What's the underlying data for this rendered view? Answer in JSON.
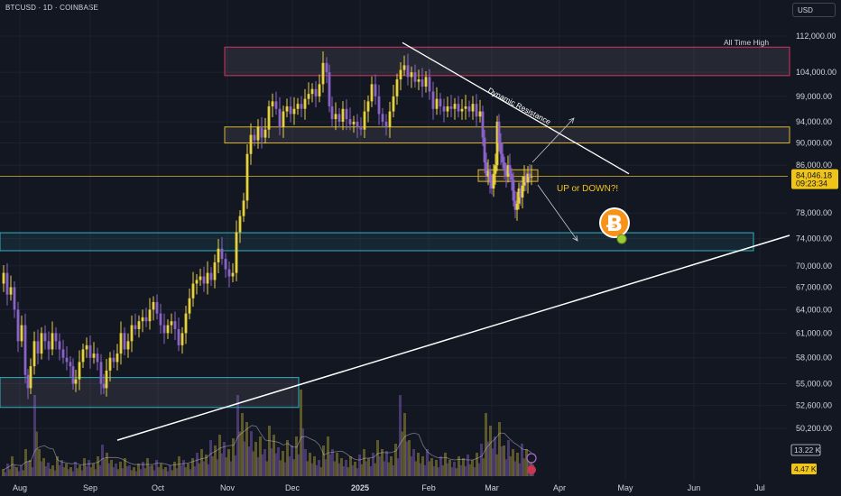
{
  "header": {
    "symbol": "BTCUSD · 1D · COINBASE",
    "currency": "USD"
  },
  "colors": {
    "background": "#131722",
    "bull": "#e8d13a",
    "bear": "#8a63c9",
    "zone_red": "#d6335e",
    "zone_yellow": "#e0b22e",
    "zone_cyan": "#2fb3c4",
    "price_tag": "#f0c419"
  },
  "chart_data": {
    "type": "candlestick",
    "x_ticks": [
      "Aug",
      "Sep",
      "Oct",
      "Nov",
      "Dec",
      "2025",
      "Feb",
      "Mar",
      "Apr",
      "May",
      "Jun",
      "Jul"
    ],
    "y_ticks": [
      112000,
      104000,
      99000,
      94000,
      90000,
      86000,
      78000,
      74000,
      70000,
      67000,
      64000,
      61000,
      58000,
      55000,
      52600,
      50200
    ],
    "y_tick_labels": [
      "112,000.00",
      "104,000.00",
      "99,000.00",
      "94,000.00",
      "90,000.00",
      "86,000.00",
      "78,000.00",
      "74,000.00",
      "70,000.00",
      "67,000.00",
      "64,000.00",
      "61,000.00",
      "58,000.00",
      "55,000.00",
      "52,600.00",
      "50,200.00"
    ],
    "last_price": "84,046.18",
    "countdown": "09:23:34",
    "volume_labels": [
      "13.22 K",
      "4.47 K"
    ],
    "y_log_scale": true,
    "price_path": [
      [
        0,
        67500
      ],
      [
        4,
        69000
      ],
      [
        8,
        66000
      ],
      [
        12,
        67000
      ],
      [
        16,
        64000
      ],
      [
        20,
        60000
      ],
      [
        24,
        62000
      ],
      [
        28,
        56000
      ],
      [
        30,
        54500
      ],
      [
        34,
        57000
      ],
      [
        38,
        60000
      ],
      [
        42,
        58500
      ],
      [
        46,
        61000
      ],
      [
        50,
        60000
      ],
      [
        54,
        59000
      ],
      [
        58,
        61000
      ],
      [
        62,
        60000
      ],
      [
        66,
        59000
      ],
      [
        70,
        58000
      ],
      [
        74,
        57500
      ],
      [
        78,
        57000
      ],
      [
        80,
        55000
      ],
      [
        84,
        55500
      ],
      [
        88,
        57500
      ],
      [
        92,
        59000
      ],
      [
        96,
        59500
      ],
      [
        100,
        58000
      ],
      [
        104,
        58500
      ],
      [
        108,
        57500
      ],
      [
        112,
        55000
      ],
      [
        114,
        54500
      ],
      [
        118,
        56500
      ],
      [
        122,
        58000
      ],
      [
        126,
        57500
      ],
      [
        130,
        58500
      ],
      [
        134,
        61000
      ],
      [
        138,
        59000
      ],
      [
        142,
        60000
      ],
      [
        146,
        62000
      ],
      [
        150,
        61500
      ],
      [
        154,
        62500
      ],
      [
        158,
        63000
      ],
      [
        162,
        62500
      ],
      [
        166,
        64000
      ],
      [
        170,
        65000
      ],
      [
        174,
        63500
      ],
      [
        178,
        62000
      ],
      [
        182,
        61000
      ],
      [
        186,
        62000
      ],
      [
        190,
        62500
      ],
      [
        194,
        61500
      ],
      [
        198,
        59500
      ],
      [
        202,
        61000
      ],
      [
        206,
        63500
      ],
      [
        210,
        65500
      ],
      [
        214,
        67500
      ],
      [
        218,
        68000
      ],
      [
        222,
        68500
      ],
      [
        226,
        67500
      ],
      [
        230,
        69000
      ],
      [
        234,
        68000
      ],
      [
        238,
        70500
      ],
      [
        242,
        72500
      ],
      [
        246,
        71000
      ],
      [
        250,
        69500
      ],
      [
        254,
        68500
      ],
      [
        258,
        69000
      ],
      [
        262,
        75000
      ],
      [
        266,
        77500
      ],
      [
        270,
        80000
      ],
      [
        274,
        88000
      ],
      [
        278,
        91500
      ],
      [
        282,
        90500
      ],
      [
        286,
        93000
      ],
      [
        290,
        91000
      ],
      [
        294,
        92500
      ],
      [
        298,
        97000
      ],
      [
        302,
        98000
      ],
      [
        306,
        96500
      ],
      [
        310,
        93000
      ],
      [
        314,
        96000
      ],
      [
        318,
        97000
      ],
      [
        322,
        95500
      ],
      [
        326,
        96500
      ],
      [
        330,
        97500
      ],
      [
        334,
        96500
      ],
      [
        338,
        98500
      ],
      [
        342,
        99500
      ],
      [
        346,
        100500
      ],
      [
        350,
        99000
      ],
      [
        354,
        101500
      ],
      [
        358,
        106000
      ],
      [
        362,
        104000
      ],
      [
        364,
        97000
      ],
      [
        368,
        94500
      ],
      [
        372,
        95500
      ],
      [
        376,
        94000
      ],
      [
        380,
        96500
      ],
      [
        384,
        94500
      ],
      [
        388,
        93500
      ],
      [
        392,
        94000
      ],
      [
        396,
        93000
      ],
      [
        400,
        92500
      ],
      [
        404,
        96000
      ],
      [
        408,
        98000
      ],
      [
        412,
        101500
      ],
      [
        416,
        99000
      ],
      [
        420,
        95500
      ],
      [
        424,
        94000
      ],
      [
        428,
        93000
      ],
      [
        432,
        96000
      ],
      [
        436,
        99000
      ],
      [
        440,
        102500
      ],
      [
        444,
        104500
      ],
      [
        448,
        105500
      ],
      [
        452,
        103000
      ],
      [
        456,
        104000
      ],
      [
        460,
        102000
      ],
      [
        464,
        102500
      ],
      [
        468,
        101000
      ],
      [
        472,
        103000
      ],
      [
        476,
        100000
      ],
      [
        480,
        96500
      ],
      [
        484,
        98500
      ],
      [
        488,
        97000
      ],
      [
        492,
        96000
      ],
      [
        496,
        97000
      ],
      [
        500,
        96500
      ],
      [
        504,
        97500
      ],
      [
        508,
        96000
      ],
      [
        512,
        96500
      ],
      [
        516,
        97000
      ],
      [
        520,
        96000
      ],
      [
        524,
        97500
      ],
      [
        528,
        95000
      ],
      [
        532,
        96000
      ],
      [
        534,
        91000
      ],
      [
        536,
        86500
      ],
      [
        538,
        84000
      ],
      [
        540,
        85000
      ],
      [
        542,
        83000
      ],
      [
        544,
        82000
      ],
      [
        546,
        84500
      ],
      [
        548,
        86000
      ],
      [
        550,
        94000
      ],
      [
        552,
        90000
      ],
      [
        554,
        88000
      ],
      [
        556,
        86500
      ],
      [
        558,
        85000
      ],
      [
        560,
        84000
      ],
      [
        562,
        86000
      ],
      [
        564,
        84500
      ],
      [
        566,
        83500
      ],
      [
        568,
        80000
      ],
      [
        570,
        78500
      ],
      [
        572,
        79500
      ],
      [
        574,
        82000
      ],
      [
        576,
        80500
      ],
      [
        578,
        82500
      ],
      [
        580,
        84000
      ],
      [
        582,
        83000
      ],
      [
        584,
        84500
      ],
      [
        586,
        84000
      ],
      [
        588,
        84046
      ]
    ],
    "volume_bars": [
      [
        0,
        8
      ],
      [
        5,
        14
      ],
      [
        10,
        22
      ],
      [
        15,
        10
      ],
      [
        20,
        12
      ],
      [
        25,
        30
      ],
      [
        30,
        18
      ],
      [
        35,
        90
      ],
      [
        40,
        30
      ],
      [
        45,
        20
      ],
      [
        50,
        15
      ],
      [
        55,
        12
      ],
      [
        60,
        22
      ],
      [
        65,
        18
      ],
      [
        70,
        14
      ],
      [
        75,
        10
      ],
      [
        80,
        16
      ],
      [
        85,
        12
      ],
      [
        90,
        20
      ],
      [
        95,
        18
      ],
      [
        100,
        14
      ],
      [
        105,
        22
      ],
      [
        110,
        35
      ],
      [
        115,
        26
      ],
      [
        120,
        18
      ],
      [
        125,
        14
      ],
      [
        130,
        16
      ],
      [
        135,
        20
      ],
      [
        140,
        12
      ],
      [
        145,
        10
      ],
      [
        150,
        14
      ],
      [
        155,
        16
      ],
      [
        160,
        20
      ],
      [
        165,
        12
      ],
      [
        170,
        18
      ],
      [
        175,
        14
      ],
      [
        180,
        10
      ],
      [
        185,
        12
      ],
      [
        190,
        16
      ],
      [
        195,
        22
      ],
      [
        200,
        18
      ],
      [
        205,
        14
      ],
      [
        210,
        20
      ],
      [
        215,
        26
      ],
      [
        220,
        30
      ],
      [
        225,
        24
      ],
      [
        230,
        40
      ],
      [
        235,
        34
      ],
      [
        240,
        46
      ],
      [
        245,
        38
      ],
      [
        250,
        30
      ],
      [
        255,
        42
      ],
      [
        260,
        90
      ],
      [
        265,
        70
      ],
      [
        270,
        60
      ],
      [
        275,
        50
      ],
      [
        280,
        38
      ],
      [
        285,
        44
      ],
      [
        290,
        30
      ],
      [
        295,
        56
      ],
      [
        300,
        46
      ],
      [
        305,
        32
      ],
      [
        310,
        28
      ],
      [
        315,
        40
      ],
      [
        320,
        34
      ],
      [
        325,
        44
      ],
      [
        330,
        96
      ],
      [
        335,
        30
      ],
      [
        340,
        26
      ],
      [
        345,
        22
      ],
      [
        350,
        18
      ],
      [
        355,
        34
      ],
      [
        360,
        44
      ],
      [
        365,
        30
      ],
      [
        370,
        26
      ],
      [
        375,
        20
      ],
      [
        380,
        18
      ],
      [
        385,
        22
      ],
      [
        390,
        16
      ],
      [
        395,
        24
      ],
      [
        400,
        30
      ],
      [
        405,
        20
      ],
      [
        410,
        26
      ],
      [
        415,
        40
      ],
      [
        420,
        30
      ],
      [
        425,
        28
      ],
      [
        430,
        22
      ],
      [
        435,
        36
      ],
      [
        440,
        90
      ],
      [
        445,
        70
      ],
      [
        450,
        40
      ],
      [
        455,
        30
      ],
      [
        460,
        26
      ],
      [
        465,
        22
      ],
      [
        470,
        30
      ],
      [
        475,
        20
      ],
      [
        480,
        18
      ],
      [
        485,
        22
      ],
      [
        490,
        26
      ],
      [
        495,
        18
      ],
      [
        500,
        16
      ],
      [
        505,
        22
      ],
      [
        510,
        20
      ],
      [
        515,
        24
      ],
      [
        520,
        18
      ],
      [
        525,
        26
      ],
      [
        530,
        36
      ],
      [
        535,
        70
      ],
      [
        540,
        56
      ],
      [
        545,
        44
      ],
      [
        550,
        60
      ],
      [
        555,
        34
      ],
      [
        560,
        40
      ],
      [
        565,
        30
      ],
      [
        570,
        26
      ],
      [
        575,
        36
      ],
      [
        580,
        30
      ],
      [
        585,
        24
      ]
    ],
    "levels": {
      "ath_zone": [
        103300,
        109500
      ],
      "upper_zone": [
        90000,
        93000
      ],
      "mid_zone": [
        83200,
        85200
      ],
      "lower_zone": [
        72200,
        74900
      ],
      "bottom_zone": [
        52400,
        55700
      ]
    },
    "annotations": {
      "ath_label": "All Time High",
      "resistance_label": "Dynamic Resistance",
      "question_label": "UP or DOWN?!"
    },
    "lines": {
      "dynamic_resistance": [
        [
          446,
          110500
        ],
        [
          697,
          84500
        ]
      ],
      "support_trend": [
        [
          130,
          49000
        ],
        [
          875,
          74500
        ]
      ]
    }
  }
}
